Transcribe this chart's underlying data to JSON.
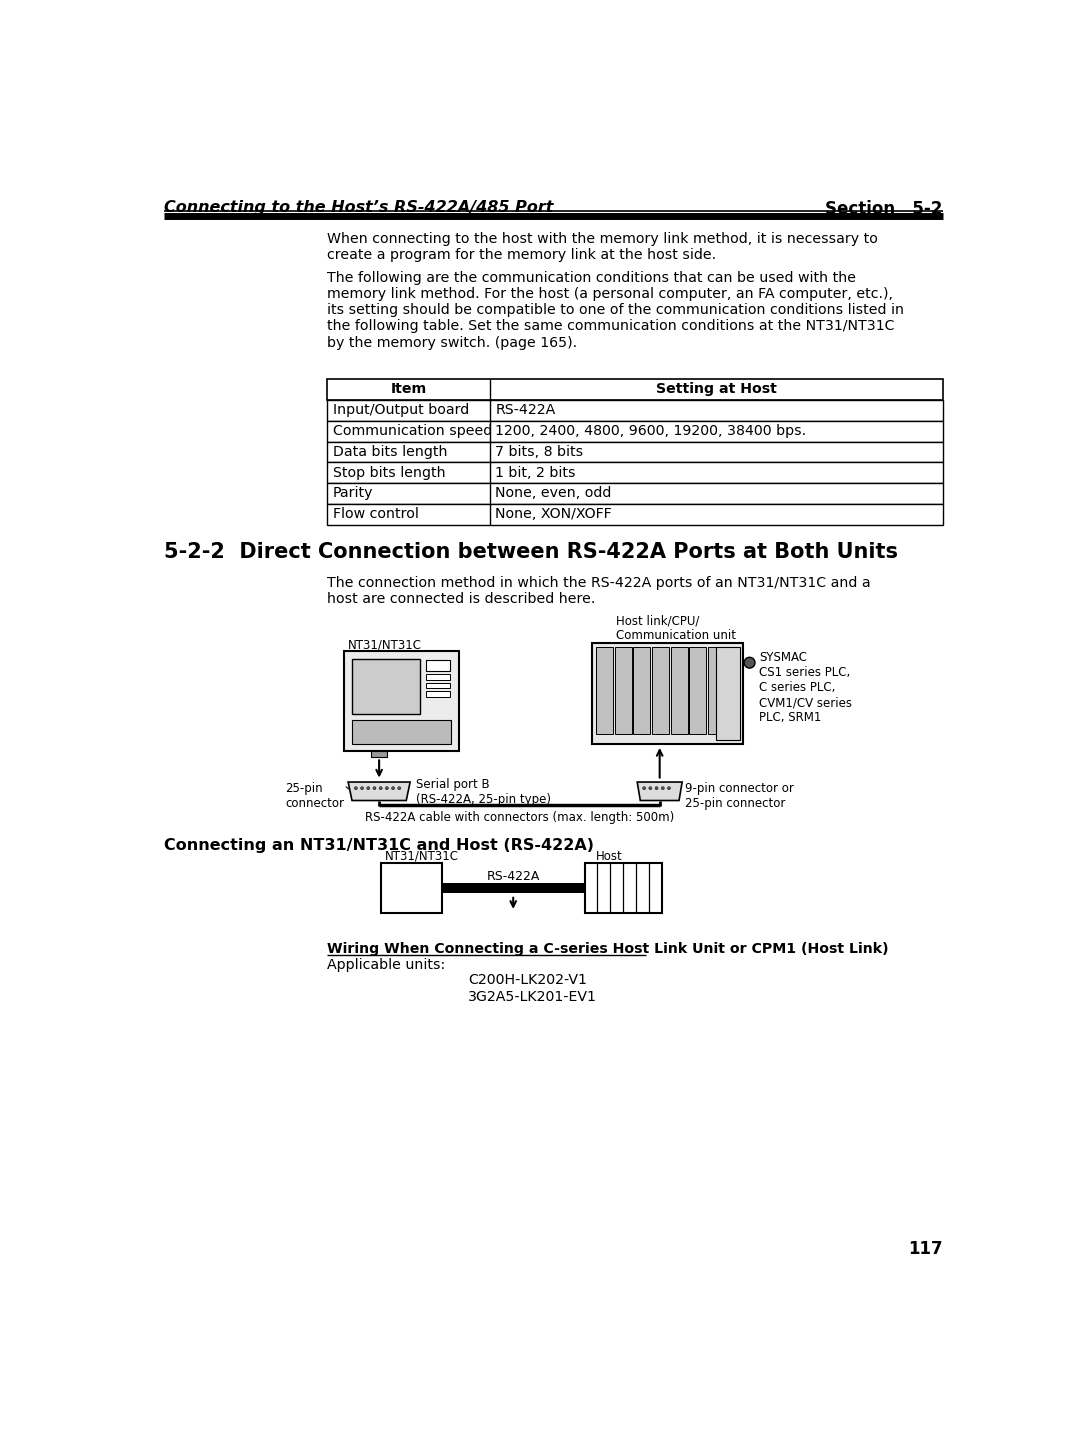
{
  "page_bg": "#ffffff",
  "header_italic_left": "Connecting to the Host’s RS-422A/485 Port",
  "header_right": "Section   5-2",
  "para1": "When connecting to the host with the memory link method, it is necessary to\ncreate a program for the memory link at the host side.",
  "para2": "The following are the communication conditions that can be used with the\nmemory link method. For the host (a personal computer, an FA computer, etc.),\nits setting should be compatible to one of the communication conditions listed in\nthe following table. Set the same communication conditions at the NT31/NT31C\nby the memory switch. (page 165).",
  "table_headers": [
    "Item",
    "Setting at Host"
  ],
  "table_rows": [
    [
      "Input/Output board",
      "RS-422A"
    ],
    [
      "Communication speed",
      "1200, 2400, 4800, 9600, 19200, 38400 bps."
    ],
    [
      "Data bits length",
      "7 bits, 8 bits"
    ],
    [
      "Stop bits length",
      "1 bit, 2 bits"
    ],
    [
      "Parity",
      "None, even, odd"
    ],
    [
      "Flow control",
      "None, XON/XOFF"
    ]
  ],
  "section_title": "5-2-2  Direct Connection between RS-422A Ports at Both Units",
  "section_para": "The connection method in which the RS-422A ports of an NT31/NT31C and a\nhost are connected is described here.",
  "diag_label_nt31": "NT31/NT31C",
  "diag_label_host_link": "Host link/CPU/\nCommunication unit",
  "diag_label_sysmac": "SYSMAC\nCS1 series PLC,\nC series PLC,\nCVM1/CV series\nPLC, SRM1",
  "diag_label_25pin": "25-pin\nconnector",
  "diag_label_serial": "Serial port B\n(RS-422A, 25-pin type)",
  "diag_label_9pin": "9-pin connector or\n25-pin connector",
  "diag_cable_label": "RS-422A cable with connectors (max. length: 500m)",
  "conn_section_title": "Connecting an NT31/NT31C and Host (RS-422A)",
  "conn_label_nt31": "NT31/NT31C",
  "conn_label_host": "Host",
  "conn_label_rs422": "RS-422A",
  "wiring_title": "Wiring When Connecting a C-series Host Link Unit or CPM1 (Host Link)",
  "wiring_applicable": "Applicable units:",
  "wiring_units": [
    "C200H-LK202-V1",
    "3G2A5-LK201-EV1"
  ],
  "page_number": "117"
}
